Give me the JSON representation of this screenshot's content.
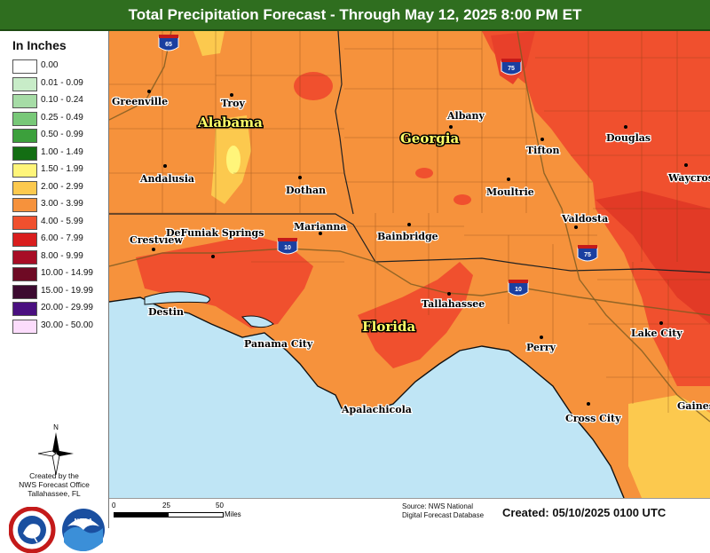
{
  "title": "Total Precipitation Forecast - Through May 12, 2025 8:00 PM ET",
  "legend": {
    "title": "In Inches",
    "items": [
      {
        "label": "0.00",
        "color": "#ffffff"
      },
      {
        "label": "0.01 - 0.09",
        "color": "#c8ecc8"
      },
      {
        "label": "0.10 - 0.24",
        "color": "#a6dca6"
      },
      {
        "label": "0.25 - 0.49",
        "color": "#78c878"
      },
      {
        "label": "0.50 - 0.99",
        "color": "#3ca03c"
      },
      {
        "label": "1.00 - 1.49",
        "color": "#136e13"
      },
      {
        "label": "1.50 - 1.99",
        "color": "#fff57a"
      },
      {
        "label": "2.00 - 2.99",
        "color": "#fcc94e"
      },
      {
        "label": "3.00 - 3.99",
        "color": "#f6923c"
      },
      {
        "label": "4.00 - 5.99",
        "color": "#f0502e"
      },
      {
        "label": "6.00 - 7.99",
        "color": "#d91e1e"
      },
      {
        "label": "8.00 - 9.99",
        "color": "#a80d26"
      },
      {
        "label": "10.00 - 14.99",
        "color": "#6e0a24"
      },
      {
        "label": "15.00 - 19.99",
        "color": "#3c0a30"
      },
      {
        "label": "20.00 - 29.99",
        "color": "#4a1080"
      },
      {
        "label": "30.00 - 50.00",
        "color": "#fcdcfc"
      }
    ]
  },
  "north_label": "N",
  "credit": [
    "Created by the",
    "NWS Forecast Office",
    "Tallahassee, FL"
  ],
  "logos": {
    "nws_icon": "nws-logo-icon",
    "noaa_text": "NOAA"
  },
  "states": [
    "Alabama",
    "Georgia",
    "Florida"
  ],
  "cities": [
    {
      "name": "Greenville"
    },
    {
      "name": "Troy"
    },
    {
      "name": "Andalusia"
    },
    {
      "name": "Dothan"
    },
    {
      "name": "Albany"
    },
    {
      "name": "Tifton"
    },
    {
      "name": "Douglas"
    },
    {
      "name": "Moultrie"
    },
    {
      "name": "Waycross"
    },
    {
      "name": "Valdosta"
    },
    {
      "name": "Bainbridge"
    },
    {
      "name": "Marianna"
    },
    {
      "name": "Crestview"
    },
    {
      "name": "DeFuniak Springs"
    },
    {
      "name": "Destin"
    },
    {
      "name": "Tallahassee"
    },
    {
      "name": "Panama City"
    },
    {
      "name": "Apalachicola"
    },
    {
      "name": "Perry"
    },
    {
      "name": "Lake City"
    },
    {
      "name": "Cross City"
    },
    {
      "name": "Gainesville"
    }
  ],
  "highways": [
    "65",
    "75",
    "10",
    "10",
    "75"
  ],
  "scale": {
    "labels": [
      "0",
      "25",
      "50"
    ],
    "units": "Miles"
  },
  "source": [
    "Source: NWS National",
    "Digital Forecast Database"
  ],
  "created": "Created:  05/10/2025 0100 UTC"
}
